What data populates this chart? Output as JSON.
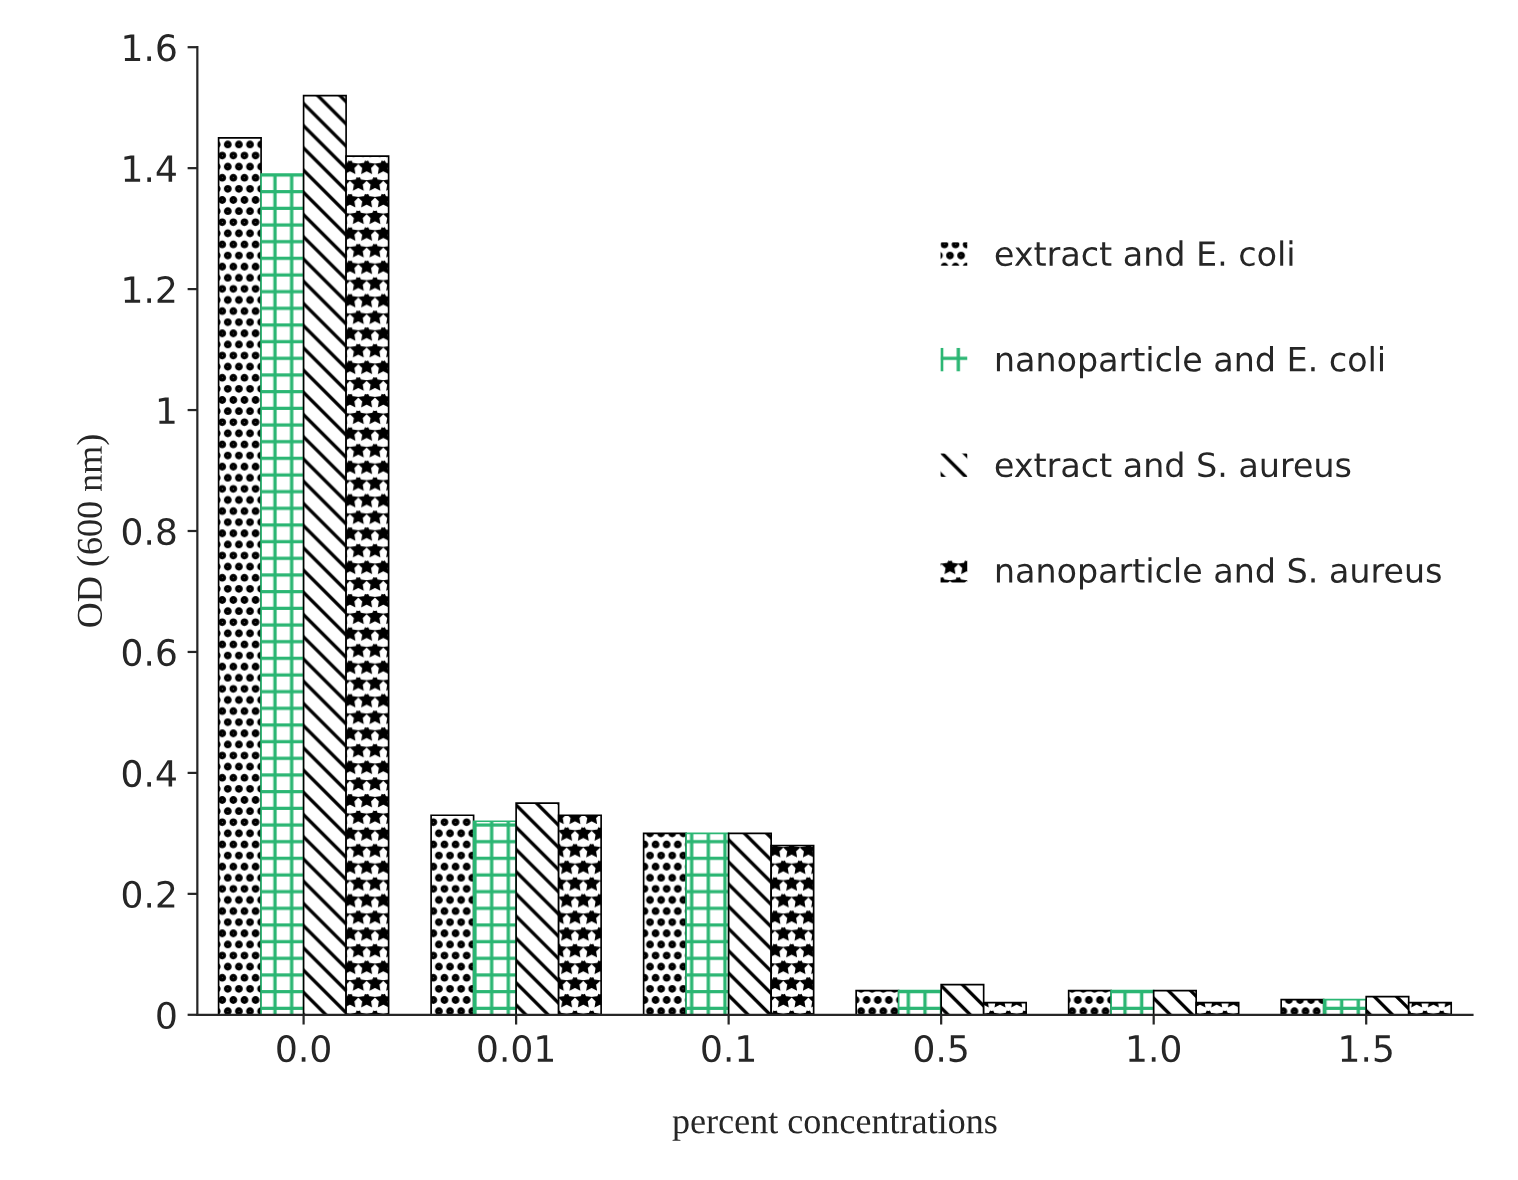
{
  "chart_data": {
    "type": "bar",
    "xlabel": "percent concentrations",
    "ylabel": "OD (600 nm)",
    "categories": [
      "0.0",
      "0.01",
      "0.1",
      "0.5",
      "1.0",
      "1.5"
    ],
    "series": [
      {
        "name": "extract and E. coli",
        "color": "#000000",
        "values": [
          1.45,
          0.33,
          0.3,
          0.04,
          0.04,
          0.025
        ]
      },
      {
        "name": "nanoparticle and E. coli",
        "color": "#2bb673",
        "values": [
          1.39,
          0.32,
          0.3,
          0.04,
          0.04,
          0.025
        ]
      },
      {
        "name": "extract and S. aureus",
        "color": "#000000",
        "values": [
          1.52,
          0.35,
          0.3,
          0.05,
          0.04,
          0.03
        ]
      },
      {
        "name": "nanoparticle and S. aureus",
        "color": "#000000",
        "values": [
          1.42,
          0.33,
          0.28,
          0.02,
          0.02,
          0.02
        ]
      }
    ],
    "ylim": [
      0,
      1.6
    ],
    "yticks": [
      0,
      0.2,
      0.4,
      0.6,
      0.8,
      1,
      1.2,
      1.4,
      1.6
    ],
    "grid": false,
    "legend": "right"
  }
}
